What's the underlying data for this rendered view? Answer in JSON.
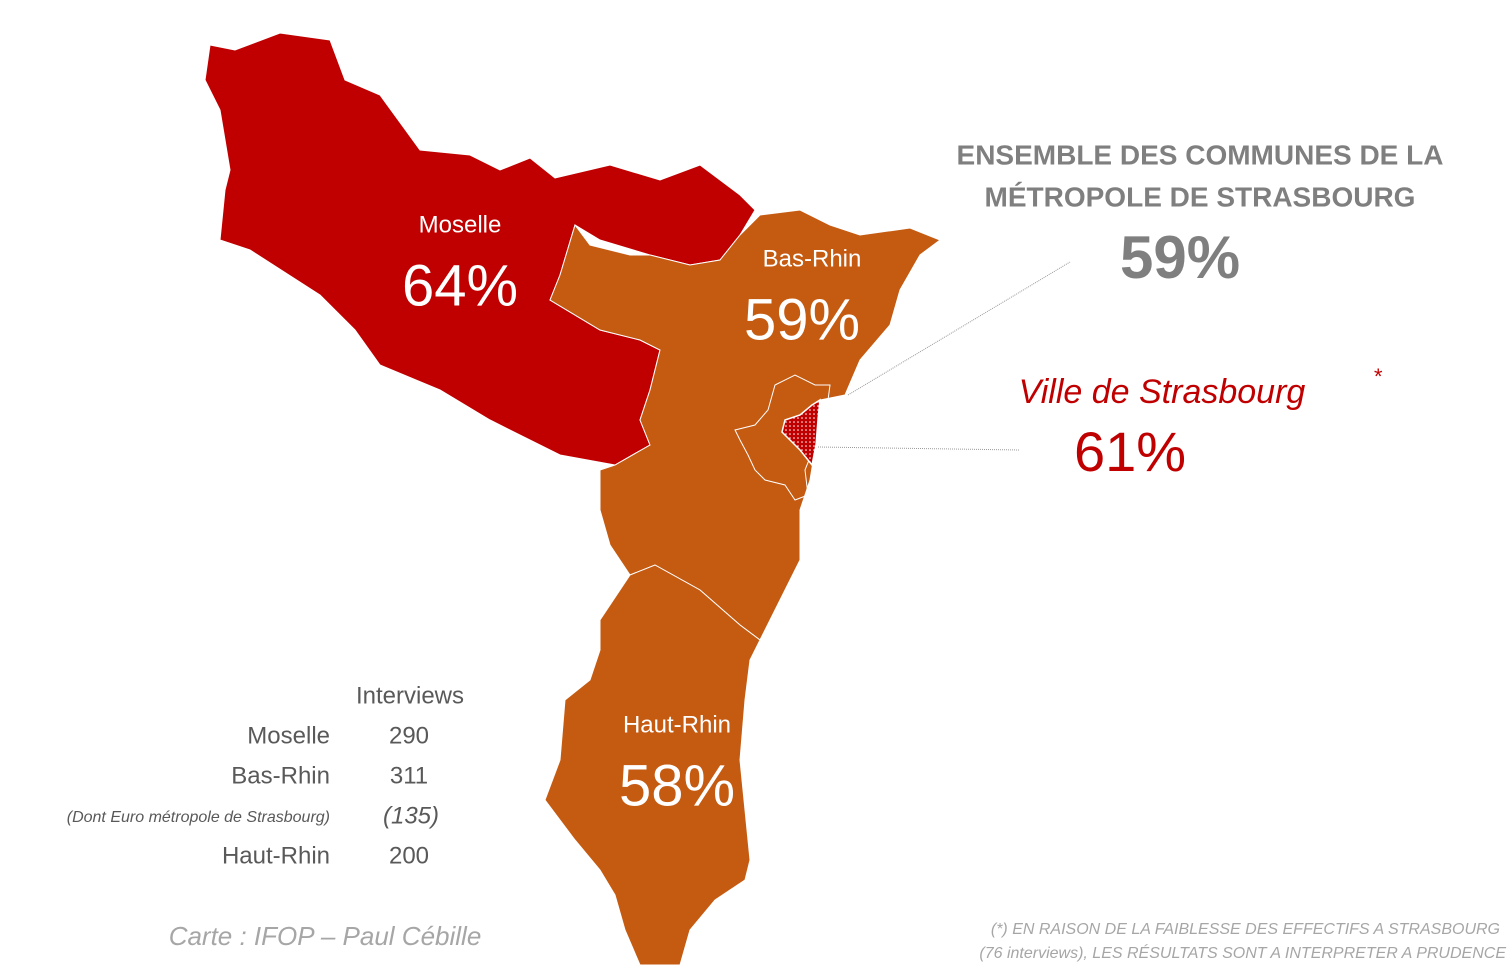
{
  "regions": [
    {
      "name": "Moselle",
      "value": "64%"
    },
    {
      "name": "Bas-Rhin",
      "value": "59%"
    },
    {
      "name": "Haut-Rhin",
      "value": "58%"
    }
  ],
  "metropole": {
    "title_line1": "ENSEMBLE DES COMMUNES DE LA",
    "title_line2": "MÉTROPOLE DE STRASBOURG",
    "value": "59%"
  },
  "ville": {
    "title": "Ville de Strasbourg",
    "asterisk": "*",
    "value": "61%"
  },
  "interviews": {
    "header": "Interviews",
    "rows": [
      [
        "Moselle",
        "290"
      ],
      [
        "Bas-Rhin",
        "311"
      ],
      [
        "(Dont Euro métropole de Strasbourg)",
        "(135)"
      ],
      [
        "Haut-Rhin",
        "200"
      ]
    ]
  },
  "credit": "Carte : IFOP – Paul Cébille",
  "footnote": [
    "(*) EN RAISON DE LA FAIBLESSE DES EFFECTIFS A STRASBOURG",
    "(76 interviews), LES RÉSULTATS SONT A INTERPRETER A PRUDENCE"
  ]
}
